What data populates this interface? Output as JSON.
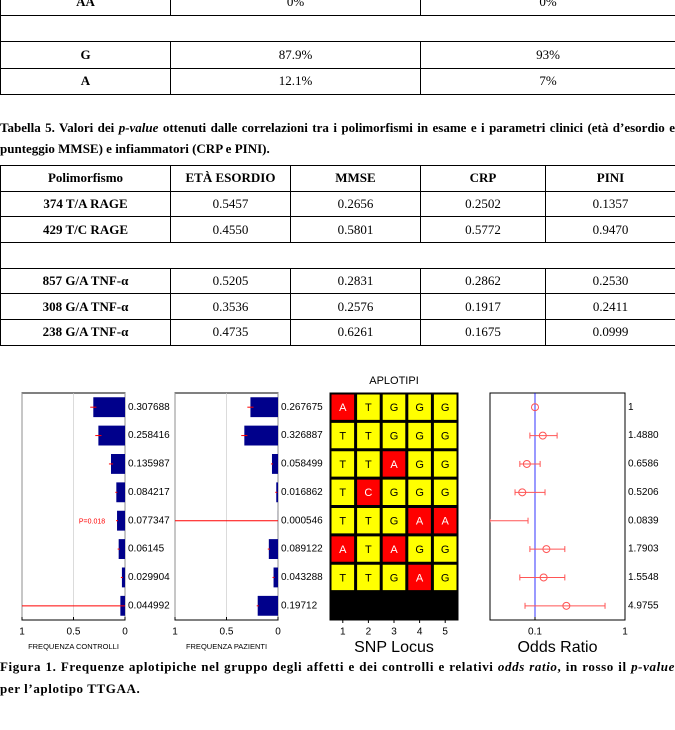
{
  "table_top": {
    "sections": [
      [
        [
          "AA",
          "0%",
          "0%"
        ]
      ],
      [
        [
          "G",
          "87.9%",
          "93%"
        ],
        [
          "A",
          "12.1%",
          "7%"
        ]
      ]
    ]
  },
  "table_caption": {
    "parts": [
      {
        "text": "Tabella 5. Valori dei "
      },
      {
        "text": "p-value",
        "italic": true
      },
      {
        "text": " ottenuti dalle correlazioni tra i polimorfismi in esame e i parametri clinici (età d’esordio e punteggio MMSE) e infiammatori (CRP e PINI)."
      }
    ]
  },
  "table": {
    "header": [
      "Polimorfismo",
      "ETÀ ESORDIO",
      "MMSE",
      "CRP",
      "PINI"
    ],
    "sections": [
      [
        [
          "374 T/A RAGE",
          "0.5457",
          "0.2656",
          "0.2502",
          "0.1357"
        ],
        [
          "429 T/C RAGE",
          "0.4550",
          "0.5801",
          "0.5772",
          "0.9470"
        ]
      ],
      [
        [
          "857 G/A TNF-α",
          "0.5205",
          "0.2831",
          "0.2862",
          "0.2530"
        ],
        [
          "308 G/A TNF-α",
          "0.3536",
          "0.2576",
          "0.1917",
          "0.2411"
        ],
        [
          "238 G/A TNF-α",
          "0.4735",
          "0.6261",
          "0.1675",
          "0.0999"
        ]
      ]
    ]
  },
  "figure": {
    "panels": [
      {
        "type": "bar",
        "xlabel": "FREQUENZA CONTROLLI",
        "xlim": [
          1,
          0
        ],
        "xticks": [
          1,
          0.5,
          0
        ],
        "grid": true,
        "color": "#00008b",
        "error_color": "#ff0000",
        "values": [
          0.307688,
          0.258416,
          0.135987,
          0.084217,
          0.077347,
          0.06145,
          0.029904,
          0.044992
        ],
        "errors": [
          0.03,
          0.03,
          0.02,
          0.01,
          0.01,
          0.01,
          0.01,
          1
        ],
        "annotation": "P=0.018"
      },
      {
        "type": "bar",
        "xlabel": "FREQUENZA PAZIENTI",
        "xlim": [
          1,
          0
        ],
        "xticks": [
          1,
          0.5,
          0
        ],
        "grid": true,
        "color": "#00008b",
        "error_color": "#ff0000",
        "values": [
          0.267675,
          0.326887,
          0.058499,
          0.016862,
          0.000546,
          0.089122,
          0.043288,
          0.19712
        ],
        "errors": [
          0.03,
          0.03,
          0.01,
          0.01,
          1,
          0.01,
          0.01,
          0.01
        ]
      },
      {
        "type": "grid",
        "title": "APLOTIPI",
        "xlabel": "SNP Locus",
        "xticks": [
          1,
          2,
          3,
          4,
          5
        ],
        "cells": [
          [
            "A",
            "T",
            "G",
            "G",
            "G"
          ],
          [
            "T",
            "T",
            "G",
            "G",
            "G"
          ],
          [
            "T",
            "T",
            "A",
            "G",
            "G"
          ],
          [
            "T",
            "C",
            "G",
            "G",
            "G"
          ],
          [
            "T",
            "T",
            "G",
            "A",
            "A"
          ],
          [
            "A",
            "T",
            "A",
            "G",
            "G"
          ],
          [
            "T",
            "T",
            "G",
            "A",
            "G"
          ],
          [
            null,
            null,
            null,
            null,
            null
          ]
        ],
        "colors": {
          "A": "#ff0000",
          "C": "#ff0000",
          "T": "#ffff00",
          "G": "#ffff00"
        },
        "letter_colors": {
          "A": "#ffffff",
          "C": "#ffffff",
          "T": "#000000",
          "G": "#000000"
        },
        "empty_color": "#000000"
      },
      {
        "type": "scatter",
        "xlabel": "Odds Ratio",
        "log": true,
        "xlim": [
          0.1,
          100
        ],
        "xticks": [
          {
            "value": 1,
            "label": "0.1"
          },
          {
            "value": 100,
            "label": "1"
          }
        ],
        "reference_line": 1,
        "ref_color": "#0000ff",
        "color": "#ff5555",
        "values": [
          1,
          1.488,
          0.6586,
          0.5206,
          0.0839,
          1.7903,
          1.5548,
          4.9755
        ],
        "value_labels": [
          "1",
          "1.4880",
          "0.6586",
          "0.5206",
          "0.0839",
          "1.7903",
          "1.5548",
          "4.9755"
        ],
        "ci_low": [
          null,
          0.77,
          0.46,
          0.36,
          0.01,
          0.77,
          0.46,
          0.6
        ],
        "ci_high": [
          null,
          3.1,
          1.3,
          1.67,
          0.7,
          4.6,
          4.6,
          36
        ]
      }
    ]
  },
  "figure_caption": {
    "parts": [
      {
        "text": "Figura 1. Frequenze aplotipiche nel gruppo degli affetti e dei controlli e relativi "
      },
      {
        "text": "odds ratio",
        "italic": true
      },
      {
        "text": ", in rosso il "
      },
      {
        "text": "p-value",
        "italic": true
      },
      {
        "text": " per l’aplotipo TTGAA."
      }
    ]
  }
}
